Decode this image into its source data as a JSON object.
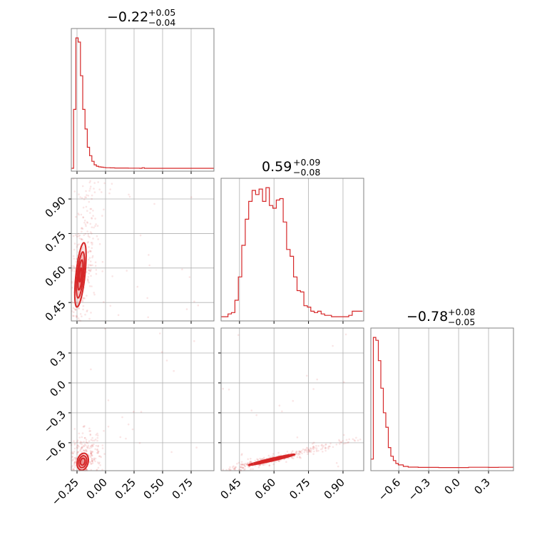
{
  "colors": {
    "series": "#d62728",
    "grid": "#b0b0b0",
    "frame": "#808080"
  },
  "chart_data": [
    {
      "type": "histogram",
      "panel": "marginal-param-1",
      "title": {
        "median": "−0.22",
        "plus": "+0.05",
        "minus": "−0.04"
      },
      "xlim": [
        -0.3,
        0.95
      ],
      "bin_edges": [
        -0.3,
        -0.28,
        -0.26,
        -0.24,
        -0.22,
        -0.2,
        -0.18,
        -0.16,
        -0.14,
        -0.12,
        -0.1,
        -0.08,
        -0.06,
        -0.04,
        -0.02,
        0.0,
        0.02,
        0.04,
        0.06,
        0.08,
        0.1,
        0.15,
        0.2,
        0.25,
        0.3,
        0.32,
        0.34,
        0.4,
        0.5,
        0.6,
        0.7,
        0.8,
        0.95
      ],
      "counts": [
        0,
        0.42,
        0.93,
        0.9,
        0.66,
        0.42,
        0.28,
        0.15,
        0.09,
        0.05,
        0.025,
        0.015,
        0.01,
        0.008,
        0.006,
        0.004,
        0.004,
        0.003,
        0.003,
        0.002,
        0.002,
        0.002,
        0.001,
        0.001,
        0.0,
        0.004,
        0.0,
        0.0,
        0.0,
        0.0,
        0.0,
        0.0
      ],
      "grid": true
    },
    {
      "type": "histogram",
      "panel": "marginal-param-2",
      "title": {
        "median": "0.59",
        "plus": "+0.09",
        "minus": "−0.08"
      },
      "xlim": [
        0.37,
        0.99
      ],
      "bin_edges": [
        0.37,
        0.385,
        0.4,
        0.415,
        0.43,
        0.445,
        0.46,
        0.475,
        0.49,
        0.505,
        0.52,
        0.535,
        0.55,
        0.565,
        0.58,
        0.595,
        0.61,
        0.625,
        0.64,
        0.655,
        0.67,
        0.685,
        0.7,
        0.715,
        0.73,
        0.745,
        0.76,
        0.775,
        0.79,
        0.805,
        0.82,
        0.835,
        0.85,
        0.865,
        0.88,
        0.895,
        0.91,
        0.925,
        0.94,
        0.955,
        0.97,
        0.985
      ],
      "counts": [
        0.01,
        0.01,
        0.03,
        0.04,
        0.13,
        0.3,
        0.53,
        0.72,
        0.85,
        0.93,
        0.9,
        0.94,
        0.85,
        0.95,
        0.82,
        0.8,
        0.86,
        0.87,
        0.7,
        0.5,
        0.45,
        0.3,
        0.2,
        0.19,
        0.09,
        0.08,
        0.05,
        0.04,
        0.05,
        0.03,
        0.02,
        0.02,
        0.01,
        0.01,
        0.01,
        0.01,
        0.01,
        0.02,
        0.05,
        0.05,
        0.05
      ],
      "grid": true
    },
    {
      "type": "histogram",
      "panel": "marginal-param-3",
      "title": {
        "median": "−0.78",
        "plus": "+0.08",
        "minus": "−0.05"
      },
      "xlim": [
        -0.88,
        0.55
      ],
      "bin_edges": [
        -0.88,
        -0.855,
        -0.83,
        -0.805,
        -0.78,
        -0.755,
        -0.73,
        -0.705,
        -0.68,
        -0.655,
        -0.63,
        -0.605,
        -0.58,
        -0.555,
        -0.53,
        -0.505,
        -0.48,
        -0.455,
        -0.43,
        -0.405,
        -0.38,
        -0.3,
        -0.2,
        -0.1,
        0.0,
        0.1,
        0.2,
        0.3,
        0.4,
        0.55
      ],
      "counts": [
        0.06,
        0.9,
        0.88,
        0.74,
        0.55,
        0.38,
        0.28,
        0.14,
        0.08,
        0.05,
        0.03,
        0.02,
        0.02,
        0.01,
        0.01,
        0.005,
        0.005,
        0.005,
        0.005,
        0.003,
        0.003,
        0.003,
        0.002,
        0.002,
        0.002,
        0.004,
        0.004,
        0.003,
        0.004
      ],
      "grid": true
    },
    {
      "type": "scatter",
      "panel": "joint-param-1-vs-param-2",
      "xlim": [
        -0.3,
        0.95
      ],
      "ylim": [
        0.38,
        1.0
      ],
      "contour_center": [
        -0.22,
        0.58
      ],
      "contour_levels": [
        {
          "sx": 0.05,
          "sy": 0.14,
          "rho": 0.6
        },
        {
          "sx": 0.035,
          "sy": 0.1,
          "rho": 0.6
        },
        {
          "sx": 0.022,
          "sy": 0.065,
          "rho": 0.6
        },
        {
          "sx": 0.01,
          "sy": 0.03,
          "rho": 0.6
        }
      ],
      "grid": true
    },
    {
      "type": "scatter",
      "panel": "joint-param-1-vs-param-3",
      "xlim": [
        -0.3,
        0.95
      ],
      "ylim": [
        -0.88,
        0.55
      ],
      "contour_center": [
        -0.2,
        -0.79
      ],
      "contour_levels": [
        {
          "sx": 0.05,
          "sy": 0.085,
          "rho": 0.2
        },
        {
          "sx": 0.035,
          "sy": 0.06,
          "rho": 0.2
        },
        {
          "sx": 0.02,
          "sy": 0.035,
          "rho": 0.2
        }
      ],
      "grid": true
    },
    {
      "type": "scatter",
      "panel": "joint-param-2-vs-param-3",
      "xlim": [
        0.37,
        0.99
      ],
      "ylim": [
        -0.88,
        0.55
      ],
      "contour_center": [
        0.59,
        -0.77
      ],
      "contour_levels": [
        {
          "sx": 0.1,
          "sy": 0.055,
          "rho": 0.97
        },
        {
          "sx": 0.075,
          "sy": 0.04,
          "rho": 0.97
        },
        {
          "sx": 0.05,
          "sy": 0.027,
          "rho": 0.97
        },
        {
          "sx": 0.02,
          "sy": 0.011,
          "rho": 0.97
        }
      ],
      "grid": true
    }
  ],
  "ticks": {
    "param1_x": [
      "−0.25",
      "0.00",
      "0.25",
      "0.50",
      "0.75"
    ],
    "param2_y": [
      "0.45",
      "0.60",
      "0.75",
      "0.90"
    ],
    "param2_x": [
      "0.45",
      "0.60",
      "0.75",
      "0.90"
    ],
    "param3_y": [
      "−0.6",
      "−0.3",
      "0.0",
      "0.3"
    ],
    "param3_x": [
      "−0.6",
      "−0.3",
      "0.0",
      "0.3"
    ]
  },
  "tick_values": {
    "param1": [
      -0.25,
      0.0,
      0.25,
      0.5,
      0.75
    ],
    "param2": [
      0.45,
      0.6,
      0.75,
      0.9
    ],
    "param3": [
      -0.6,
      -0.3,
      0.0,
      0.3
    ]
  }
}
